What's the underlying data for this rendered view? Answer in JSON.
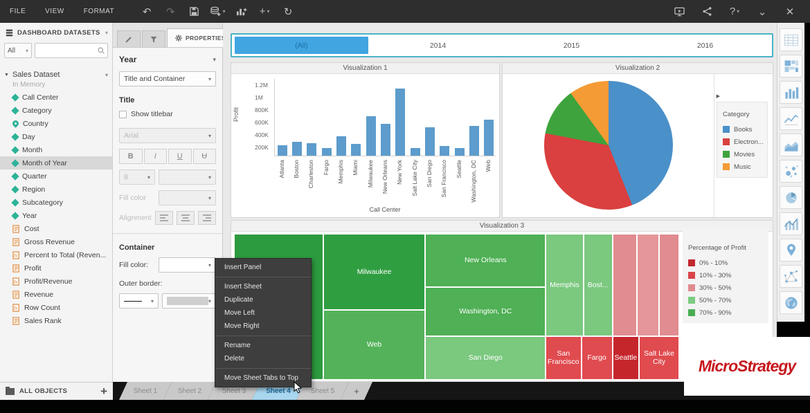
{
  "toolbar": {
    "menus": [
      {
        "label": "FILE"
      },
      {
        "label": "VIEW"
      },
      {
        "label": "FORMAT"
      }
    ],
    "left_icons": [
      {
        "name": "undo-icon",
        "glyph": "↶",
        "enabled": true
      },
      {
        "name": "redo-icon",
        "glyph": "↷",
        "enabled": false
      },
      {
        "name": "save-icon",
        "svg": "save",
        "enabled": true
      },
      {
        "name": "add-dataset-icon",
        "svg": "stack",
        "caret": true,
        "enabled": true
      },
      {
        "name": "add-visualization-icon",
        "svg": "barsplus",
        "enabled": true
      },
      {
        "name": "insert-icon",
        "glyph": "+",
        "caret": true,
        "enabled": true
      },
      {
        "name": "refresh-icon",
        "glyph": "↻",
        "enabled": true
      }
    ],
    "right_icons": [
      {
        "name": "present-icon",
        "svg": "monitor"
      },
      {
        "name": "share-icon",
        "svg": "share"
      },
      {
        "name": "help-icon",
        "glyph": "?",
        "caret": true
      },
      {
        "name": "collapse-icon",
        "glyph": "⌄"
      },
      {
        "name": "close-icon",
        "glyph": "✕"
      }
    ]
  },
  "datasets_panel": {
    "header": "DASHBOARD DATASETS",
    "filter_value": "All",
    "dataset": {
      "name": "Sales Dataset",
      "subtitle": "In Memory"
    },
    "items": [
      {
        "label": "Call Center",
        "icon": "attribute-diamond-icon"
      },
      {
        "label": "Category",
        "icon": "attribute-diamond-icon"
      },
      {
        "label": "Country",
        "icon": "geo-attribute-icon"
      },
      {
        "label": "Day",
        "icon": "attribute-diamond-icon"
      },
      {
        "label": "Month",
        "icon": "attribute-diamond-icon"
      },
      {
        "label": "Month of Year",
        "icon": "attribute-diamond-icon",
        "selected": true
      },
      {
        "label": "Quarter",
        "icon": "attribute-diamond-icon"
      },
      {
        "label": "Region",
        "icon": "attribute-diamond-icon"
      },
      {
        "label": "Subcategory",
        "icon": "attribute-diamond-icon"
      },
      {
        "label": "Year",
        "icon": "attribute-diamond-icon"
      },
      {
        "label": "Cost",
        "icon": "metric-icon"
      },
      {
        "label": "Gross Revenue",
        "icon": "metric-icon"
      },
      {
        "label": "Percent to Total (Reven...",
        "icon": "derived-metric-icon"
      },
      {
        "label": "Profit",
        "icon": "metric-icon"
      },
      {
        "label": "Profit/Revenue",
        "icon": "derived-metric-icon"
      },
      {
        "label": "Revenue",
        "icon": "metric-icon"
      },
      {
        "label": "Row Count",
        "icon": "derived-metric-icon"
      },
      {
        "label": "Sales Rank",
        "icon": "metric-icon"
      }
    ]
  },
  "all_objects": {
    "label": "ALL OBJECTS",
    "add_label": "+"
  },
  "properties_panel": {
    "tabs_labels": {
      "properties": "PROPERTIES"
    },
    "target_label": "Year",
    "scope_value": "Title and Container",
    "title_heading": "Title",
    "show_titlebar_label": "Show titlebar",
    "font_value": "Arial",
    "format_buttons": [
      "B",
      "I",
      "U",
      "Ʉ"
    ],
    "size_value": "8",
    "fill_color_label": "Fill color",
    "alignment_label": "Alignment",
    "container_heading": "Container",
    "container_fill_label": "Fill color:",
    "outer_border_label": "Outer border:"
  },
  "canvas": {
    "year_filter": {
      "selected": "(All)",
      "options": [
        "2014",
        "2015",
        "2016"
      ]
    }
  },
  "chart_data": [
    {
      "type": "bar",
      "title": "Visualization 1",
      "xlabel": "Call Center",
      "ylabel": "Profit",
      "categories": [
        "Atlanta",
        "Boston",
        "Charleston",
        "Fargo",
        "Memphis",
        "Miami",
        "Milwaukee",
        "New Orleans",
        "New York",
        "Salt Lake City",
        "San Diego",
        "San Francisco",
        "Seattle",
        "Washington, DC",
        "Web"
      ],
      "values_thousands": [
        170,
        225,
        205,
        125,
        310,
        190,
        640,
        515,
        1080,
        120,
        455,
        160,
        120,
        485,
        585
      ],
      "yticks": [
        {
          "v": 200,
          "label": "200K"
        },
        {
          "v": 400,
          "label": "400K"
        },
        {
          "v": 600,
          "label": "600K"
        },
        {
          "v": 800,
          "label": "800K"
        },
        {
          "v": 1000,
          "label": "1M"
        },
        {
          "v": 1200,
          "label": "1.2M"
        }
      ],
      "ymax_thousands": 1250,
      "bar_color": "#5d9ccc",
      "grid": false,
      "legend_position": "none"
    },
    {
      "type": "pie",
      "title": "Visualization 2",
      "legend_title": "Category",
      "legend_position": "right",
      "slices": [
        {
          "label": "Books",
          "pct": 44,
          "color": "#4a90c9"
        },
        {
          "label": "Electron...",
          "pct": 34,
          "color": "#d9403f"
        },
        {
          "label": "Movies",
          "pct": 12,
          "color": "#3ea33d"
        },
        {
          "label": "Music",
          "pct": 10,
          "color": "#f59b35"
        }
      ]
    },
    {
      "type": "heatmap",
      "title": "Visualization 3",
      "legend_title": "Percentage of Profit",
      "legend_position": "right",
      "legend": [
        {
          "label": "0% - 10%",
          "color": "#c0272d"
        },
        {
          "label": "10% - 30%",
          "color": "#d9444a"
        },
        {
          "label": "30% - 50%",
          "color": "#e08a8e"
        },
        {
          "label": "50% - 70%",
          "color": "#7ccc81"
        },
        {
          "label": "70% - 90%",
          "color": "#4aad52"
        }
      ],
      "cells": [
        {
          "label": "",
          "x": 0,
          "y": 0,
          "w": 20,
          "h": 100,
          "color": "#2c9a3e"
        },
        {
          "label": "Milwaukee",
          "x": 20,
          "y": 0,
          "w": 23,
          "h": 52,
          "color": "#2f9e41"
        },
        {
          "label": "Web",
          "x": 20,
          "y": 52,
          "w": 23,
          "h": 48,
          "color": "#54b25a"
        },
        {
          "label": "New Orleans",
          "x": 43,
          "y": 0,
          "w": 27,
          "h": 36.5,
          "color": "#4fb055"
        },
        {
          "label": "Washington, DC",
          "x": 43,
          "y": 36.5,
          "w": 27,
          "h": 33.5,
          "color": "#4fb055"
        },
        {
          "label": "San Diego",
          "x": 43,
          "y": 70,
          "w": 27,
          "h": 30,
          "color": "#7bc87f"
        },
        {
          "label": "Memphis",
          "x": 70,
          "y": 0,
          "w": 8.5,
          "h": 70,
          "color": "#7bc87f"
        },
        {
          "label": "Bost...",
          "x": 78.5,
          "y": 0,
          "w": 6.5,
          "h": 70,
          "color": "#7bc87f"
        },
        {
          "label": "",
          "x": 85,
          "y": 0,
          "w": 5.5,
          "h": 70,
          "color": "#e18c90"
        },
        {
          "label": "",
          "x": 90.5,
          "y": 0,
          "w": 5,
          "h": 70,
          "color": "#e4969a"
        },
        {
          "label": "",
          "x": 95.5,
          "y": 0,
          "w": 4.5,
          "h": 70,
          "color": "#e18c90"
        },
        {
          "label": "San Francisco",
          "x": 70,
          "y": 70,
          "w": 8,
          "h": 30,
          "color": "#e04b4f"
        },
        {
          "label": "Fargo",
          "x": 78,
          "y": 70,
          "w": 7,
          "h": 30,
          "color": "#e04b4f"
        },
        {
          "label": "Seattle",
          "x": 85,
          "y": 70,
          "w": 6,
          "h": 30,
          "color": "#c5262c"
        },
        {
          "label": "Salt Lake City",
          "x": 91,
          "y": 70,
          "w": 9,
          "h": 30,
          "color": "#e04b4f"
        }
      ]
    }
  ],
  "context_menu": {
    "groups": [
      [
        "Insert Panel"
      ],
      [
        "Insert Sheet",
        "Duplicate",
        "Move Left",
        "Move Right"
      ],
      [
        "Rename",
        "Delete"
      ],
      [
        "Move Sheet Tabs to Top"
      ]
    ]
  },
  "sheet_tabs": {
    "tabs": [
      {
        "label": "Sheet 1"
      },
      {
        "label": "Sheet 2"
      },
      {
        "label": "Sheet 3"
      },
      {
        "label": "Sheet 4",
        "active": true
      },
      {
        "label": "Sheet 5"
      }
    ],
    "add_label": "+"
  },
  "gallery": {
    "items": [
      "table-icon",
      "heatmap-grid-icon",
      "bar-chart-icon",
      "line-chart-icon",
      "area-chart-icon",
      "bubble-chart-icon",
      "pie-chart-icon",
      "combo-chart-icon",
      "map-icon",
      "network-icon",
      "globe-icon"
    ]
  },
  "watermark": {
    "text": "MicroStrategy"
  }
}
